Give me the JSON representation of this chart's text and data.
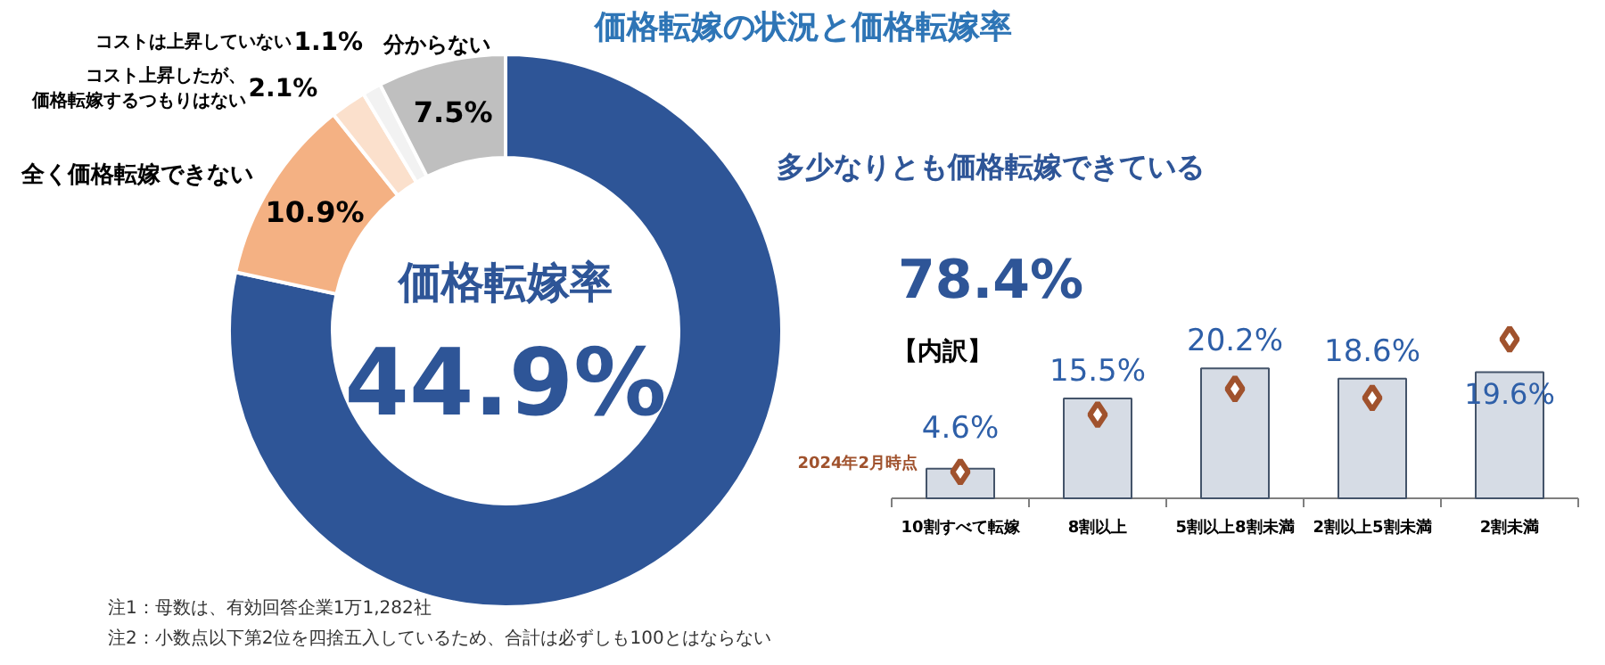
{
  "chart_data": [
    {
      "type": "donut",
      "title": "価格転嫁の状況と価格転嫁率",
      "categories": [
        "多少なりとも価格転嫁できている",
        "全く価格転嫁できない",
        "コスト上昇したが、価格転嫁するつもりはない",
        "コストは上昇していない",
        "分からない"
      ],
      "values": [
        78.4,
        10.9,
        2.1,
        1.1,
        7.5
      ],
      "colors": [
        "#2e5597",
        "#f4b183",
        "#fbe0cc",
        "#f2f2f2",
        "#bfbfbf"
      ],
      "value_labels": [
        "78.4%",
        "10.9%",
        "2.1%",
        "1.1%",
        "7.5%"
      ],
      "annotations": [
        "価格転嫁率",
        "44.9%",
        "注1：母数は、有効回答企業1万1,282社",
        "注2：小数点以下第2位を四捨五入しているため、合計は必ずしも100とはならない"
      ]
    },
    {
      "type": "bar",
      "subtitle": "【内訳】",
      "categories": [
        "10割すべて転嫁",
        "8割以上",
        "5割以上8割未満",
        "2割以上5割未満",
        "2割未満"
      ],
      "marker": "diamond",
      "series": [
        {
          "type": "bar",
          "color": "#d6dce5",
          "values": [
            4.6,
            15.5,
            20.2,
            18.6,
            19.6
          ],
          "value_labels": [
            "4.6%",
            "15.5%",
            "20.2%",
            "18.6%",
            "19.6%"
          ]
        },
        {
          "type": "scatter",
          "name": "2024年2月時点",
          "color": "#a0522d",
          "values": [
            4.1,
            13.0,
            17.0,
            15.6,
            24.7
          ]
        }
      ]
    }
  ]
}
